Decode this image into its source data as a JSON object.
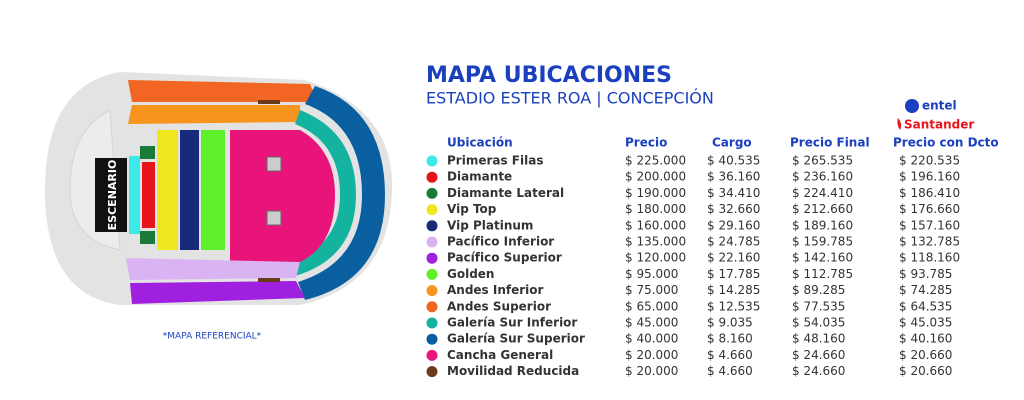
{
  "map": {
    "stage": "ESCENARIO",
    "note": "*MAPA REFERENCIAL*"
  },
  "header": {
    "title": "MAPA UBICACIONES",
    "subtitle": "ESTADIO ESTER ROA | CONCEPCIÓN"
  },
  "sponsors": {
    "entel": "entel",
    "santander": "Santander"
  },
  "table": {
    "columns": [
      "Ubicación",
      "Precio",
      "Cargo",
      "Precio Final",
      "Precio con Dcto"
    ],
    "rows": [
      {
        "color": "#3de8e8",
        "name": "Primeras Filas",
        "precio": "$ 225.000",
        "cargo": "$ 40.535",
        "final": "$ 265.535",
        "dcto": "$ 220.535"
      },
      {
        "color": "#e8141c",
        "name": "Diamante",
        "precio": "$ 200.000",
        "cargo": "$ 36.160",
        "final": "$ 236.160",
        "dcto": "$ 196.160"
      },
      {
        "color": "#1a7a3a",
        "name": "Diamante Lateral",
        "precio": "$ 190.000",
        "cargo": "$ 34.410",
        "final": "$ 224.410",
        "dcto": "$ 186.410"
      },
      {
        "color": "#f0e620",
        "name": "Vip Top",
        "precio": "$ 180.000",
        "cargo": "$ 32.660",
        "final": "$ 212.660",
        "dcto": "$ 176.660"
      },
      {
        "color": "#1a2a7a",
        "name": "Vip Platinum",
        "precio": "$ 160.000",
        "cargo": "$ 29.160",
        "final": "$ 189.160",
        "dcto": "$ 157.160"
      },
      {
        "color": "#d9b3f2",
        "name": "Pacífico Inferior",
        "precio": "$ 135.000",
        "cargo": "$ 24.785",
        "final": "$ 159.785",
        "dcto": "$ 132.785"
      },
      {
        "color": "#a020e0",
        "name": "Pacífico Superior",
        "precio": "$ 120.000",
        "cargo": "$ 22.160",
        "final": "$ 142.160",
        "dcto": "$ 118.160"
      },
      {
        "color": "#5ef02a",
        "name": "Golden",
        "precio": "$ 95.000",
        "cargo": "$ 17.785",
        "final": "$ 112.785",
        "dcto": "$ 93.785"
      },
      {
        "color": "#f7941d",
        "name": "Andes Inferior",
        "precio": "$ 75.000",
        "cargo": "$ 14.285",
        "final": "$ 89.285",
        "dcto": "$ 74.285"
      },
      {
        "color": "#f26522",
        "name": "Andes Superior",
        "precio": "$ 65.000",
        "cargo": "$ 12.535",
        "final": "$ 77.535",
        "dcto": "$ 64.535"
      },
      {
        "color": "#14b3a0",
        "name": "Galería Sur Inferior",
        "precio": "$ 45.000",
        "cargo": "$ 9.035",
        "final": "$ 54.035",
        "dcto": "$ 45.035"
      },
      {
        "color": "#0a5fa0",
        "name": "Galería Sur Superior",
        "precio": "$ 40.000",
        "cargo": "$ 8.160",
        "final": "$ 48.160",
        "dcto": "$ 40.160"
      },
      {
        "color": "#e8147a",
        "name": "Cancha General",
        "precio": "$ 20.000",
        "cargo": "$ 4.660",
        "final": "$ 24.660",
        "dcto": "$ 20.660"
      },
      {
        "color": "#6b3a1a",
        "name": "Movilidad Reducida",
        "precio": "$ 20.000",
        "cargo": "$ 4.660",
        "final": "$ 24.660",
        "dcto": "$ 20.660"
      }
    ]
  }
}
